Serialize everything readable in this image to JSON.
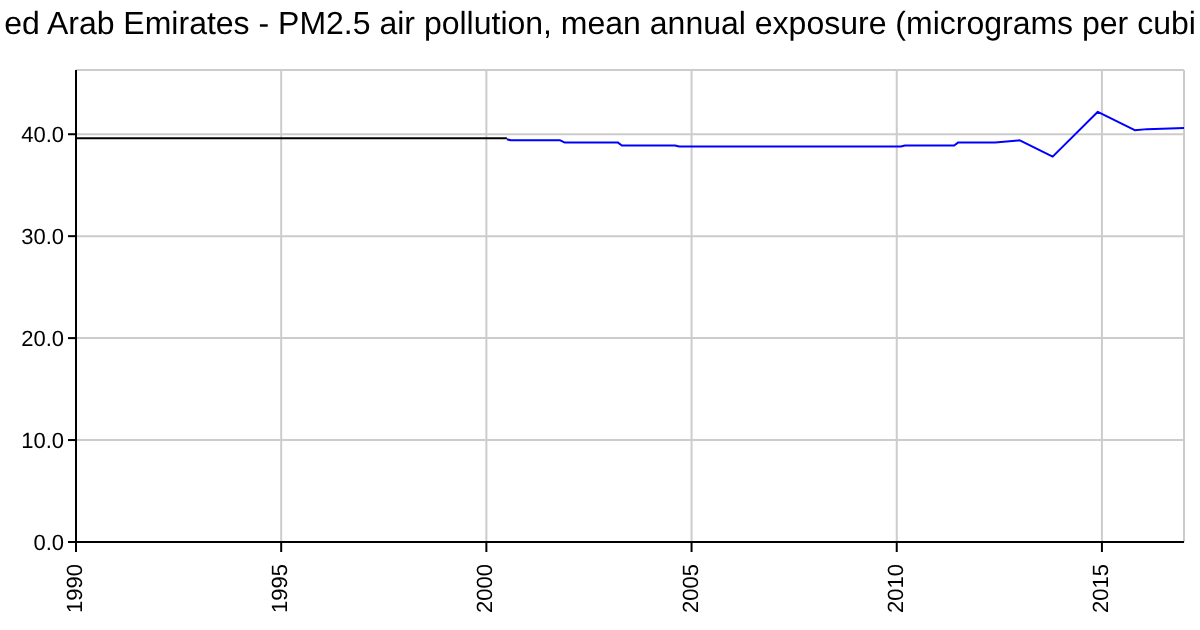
{
  "chart_data": {
    "type": "line",
    "title": "ed Arab Emirates - PM2.5 air pollution, mean annual exposure (micrograms per cubi",
    "series": [
      {
        "color": "#000000",
        "x": [
          1990,
          2000.5
        ],
        "values": [
          39.6,
          39.6
        ]
      },
      {
        "color": "#0000ff",
        "x": [
          2000.5,
          2000.6,
          2001.8,
          2001.9,
          2003.2,
          2003.3,
          2004.6,
          2004.7,
          2010.1,
          2010.2,
          2011.4,
          2011.5,
          2012.4,
          2013,
          2013.8,
          2014.9,
          2015.8,
          2016.1,
          2017
        ],
        "values": [
          39.5,
          39.4,
          39.4,
          39.2,
          39.2,
          38.9,
          38.9,
          38.8,
          38.8,
          38.9,
          38.9,
          39.2,
          39.2,
          39.4,
          37.8,
          42.2,
          40.4,
          40.5,
          40.6
        ]
      }
    ],
    "xlim": [
      1990,
      2017
    ],
    "xticks": [
      1990,
      1995,
      2000,
      2005,
      2010,
      2015
    ],
    "ylim": [
      0,
      46.3
    ],
    "yticks": [
      {
        "value": 0,
        "label": "0.0"
      },
      {
        "value": 10,
        "label": "10.0"
      },
      {
        "value": 20,
        "label": "20.0"
      },
      {
        "value": 30,
        "label": "30.0"
      },
      {
        "value": 40,
        "label": "40.0"
      }
    ],
    "grid": true,
    "marker": "none",
    "line_style": "solid"
  }
}
